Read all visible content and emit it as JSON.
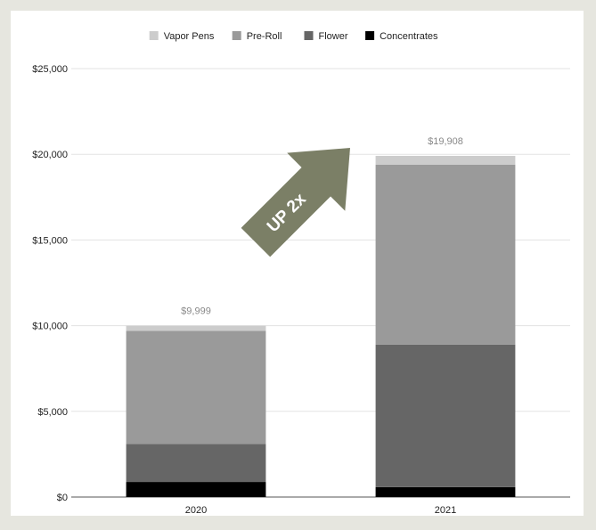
{
  "chart_data": {
    "type": "bar",
    "stacked": true,
    "categories": [
      "2020",
      "2021"
    ],
    "series": [
      {
        "name": "Concentrates",
        "color": "#000000",
        "values": [
          880,
          580
        ]
      },
      {
        "name": "Flower",
        "color": "#666666",
        "values": [
          2220,
          8320
        ]
      },
      {
        "name": "Pre-Roll",
        "color": "#9a9a9a",
        "values": [
          6600,
          10500
        ]
      },
      {
        "name": "Vapor Pens",
        "color": "#cccccc",
        "values": [
          299,
          508
        ]
      }
    ],
    "legend_order": [
      "Vapor Pens",
      "Pre-Roll",
      "Flower",
      "Concentrates"
    ],
    "legend_position": "top",
    "totals": [
      "$9,999",
      "$19,908"
    ],
    "y_ticks": [
      {
        "value": 0,
        "label": "$0"
      },
      {
        "value": 5000,
        "label": "$5,000"
      },
      {
        "value": 10000,
        "label": "$10,000"
      },
      {
        "value": 15000,
        "label": "$15,000"
      },
      {
        "value": 20000,
        "label": "$20,000"
      },
      {
        "value": 25000,
        "label": "$25,000"
      }
    ],
    "ylim": [
      0,
      25000
    ],
    "grid": true,
    "annotation": {
      "text": "UP 2x",
      "color": "#7b7f66"
    }
  }
}
